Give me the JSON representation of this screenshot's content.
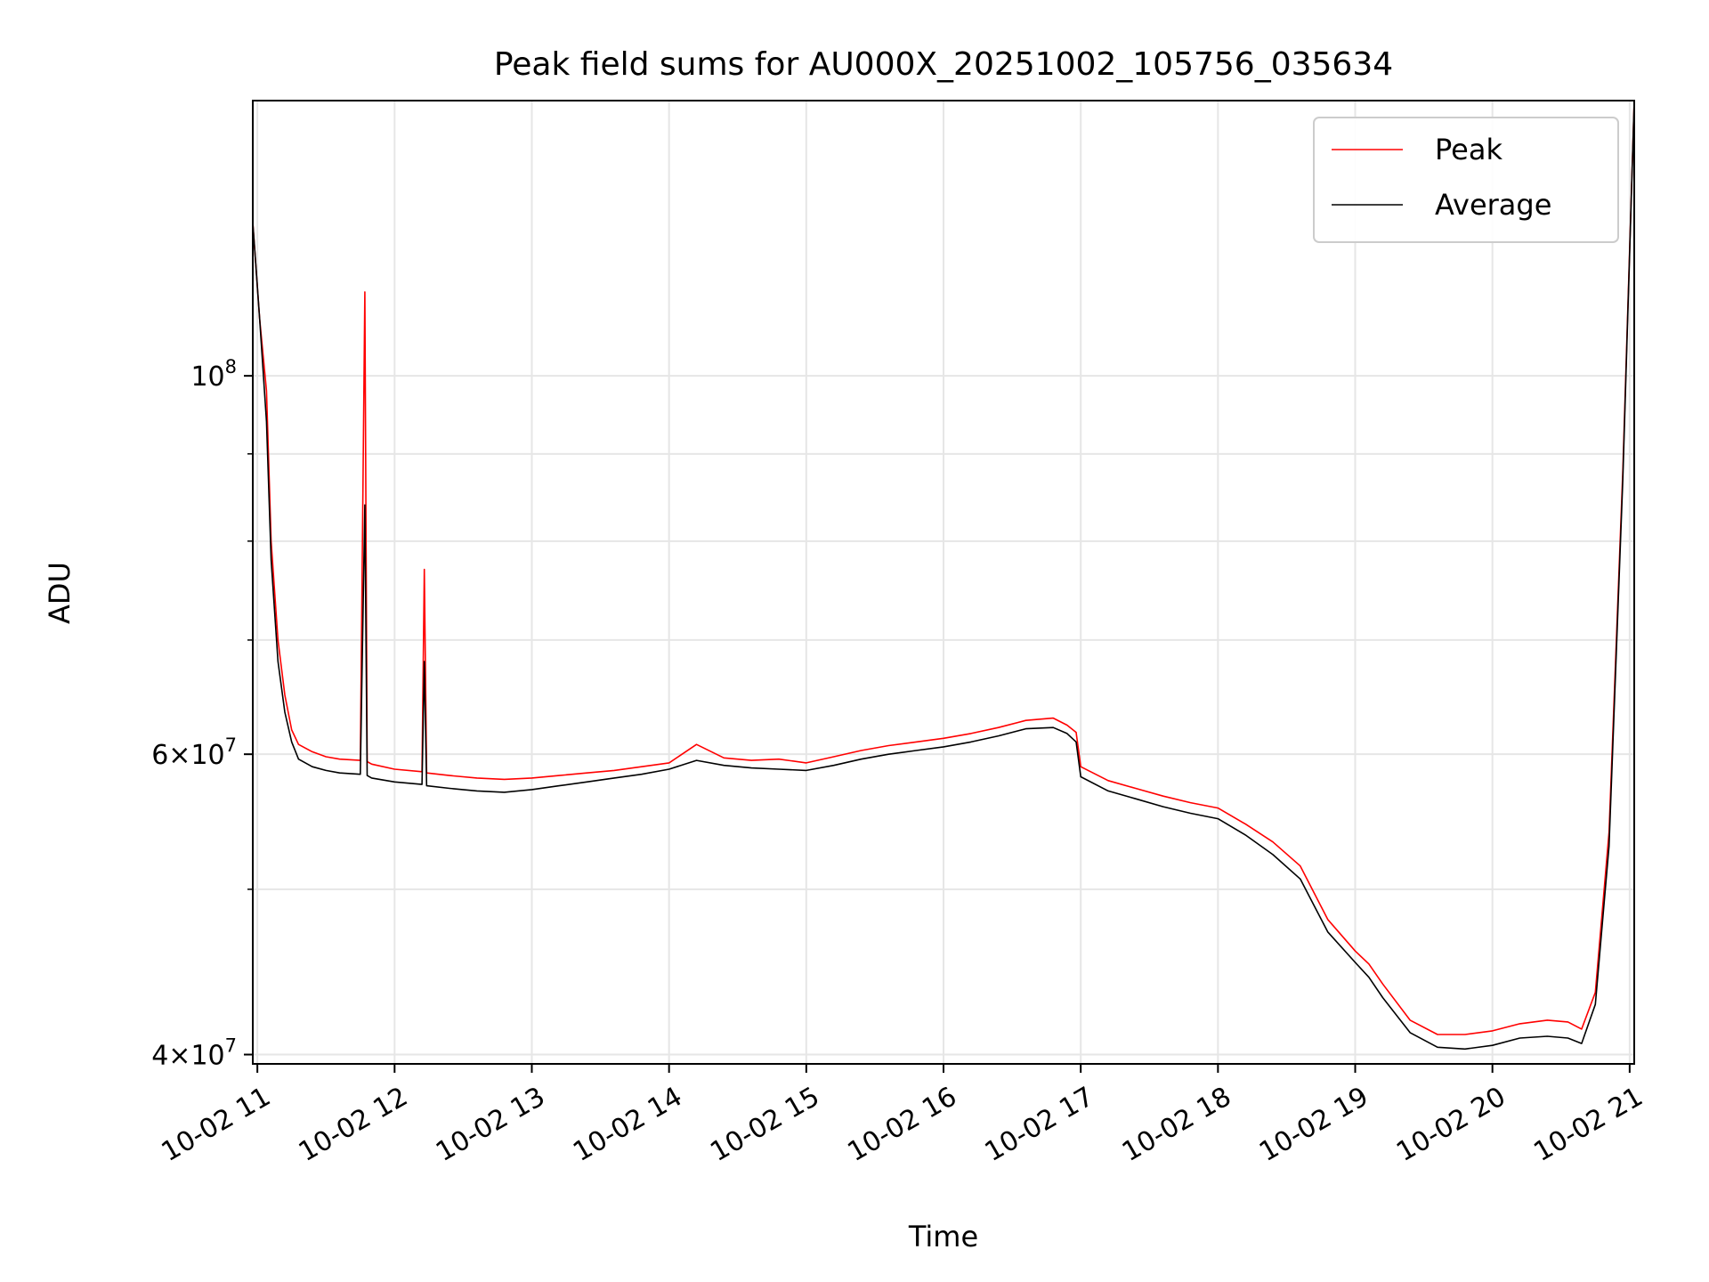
{
  "chart_data": {
    "type": "line",
    "title": "Peak field sums for AU000X_20251002_105756_035634",
    "xlabel": "Time",
    "ylabel": "ADU",
    "yscale": "log",
    "grid": true,
    "legend_position": "top-right",
    "xlim": [
      "2025-10-02 10:58",
      "2025-10-02 21:02"
    ],
    "ylim": [
      39500000,
      145000000
    ],
    "x_ticks": [
      {
        "value": "2025-10-02 11:00",
        "label": "10-02 11"
      },
      {
        "value": "2025-10-02 12:00",
        "label": "10-02 12"
      },
      {
        "value": "2025-10-02 13:00",
        "label": "10-02 13"
      },
      {
        "value": "2025-10-02 14:00",
        "label": "10-02 14"
      },
      {
        "value": "2025-10-02 15:00",
        "label": "10-02 15"
      },
      {
        "value": "2025-10-02 16:00",
        "label": "10-02 16"
      },
      {
        "value": "2025-10-02 17:00",
        "label": "10-02 17"
      },
      {
        "value": "2025-10-02 18:00",
        "label": "10-02 18"
      },
      {
        "value": "2025-10-02 19:00",
        "label": "10-02 19"
      },
      {
        "value": "2025-10-02 20:00",
        "label": "10-02 20"
      },
      {
        "value": "2025-10-02 21:00",
        "label": "10-02 21"
      }
    ],
    "y_major_ticks": [
      {
        "value": 100000000,
        "base": "10",
        "exp": "8",
        "mantissa": ""
      },
      {
        "value": 60000000,
        "base": "10",
        "exp": "7",
        "mantissa": "6"
      },
      {
        "value": 40000000,
        "base": "10",
        "exp": "7",
        "mantissa": "4"
      }
    ],
    "y_minor_ticks": [
      50000000,
      70000000,
      80000000,
      90000000
    ],
    "series": [
      {
        "name": "Peak",
        "color": "#ff0000",
        "x": [
          "2025-10-02 10:58",
          "2025-10-02 11:01",
          "2025-10-02 11:04",
          "2025-10-02 11:06",
          "2025-10-02 11:09",
          "2025-10-02 11:12",
          "2025-10-02 11:15",
          "2025-10-02 11:18",
          "2025-10-02 11:24",
          "2025-10-02 11:30",
          "2025-10-02 11:36",
          "2025-10-02 11:45",
          "2025-10-02 11:47",
          "2025-10-02 11:48",
          "2025-10-02 11:50",
          "2025-10-02 12:00",
          "2025-10-02 12:12",
          "2025-10-02 12:13",
          "2025-10-02 12:14",
          "2025-10-02 12:24",
          "2025-10-02 12:36",
          "2025-10-02 12:48",
          "2025-10-02 13:00",
          "2025-10-02 13:12",
          "2025-10-02 13:24",
          "2025-10-02 13:36",
          "2025-10-02 13:48",
          "2025-10-02 14:00",
          "2025-10-02 14:12",
          "2025-10-02 14:24",
          "2025-10-02 14:36",
          "2025-10-02 14:48",
          "2025-10-02 15:00",
          "2025-10-02 15:12",
          "2025-10-02 15:24",
          "2025-10-02 15:36",
          "2025-10-02 15:48",
          "2025-10-02 16:00",
          "2025-10-02 16:12",
          "2025-10-02 16:24",
          "2025-10-02 16:36",
          "2025-10-02 16:48",
          "2025-10-02 16:54",
          "2025-10-02 16:58",
          "2025-10-02 17:00",
          "2025-10-02 17:12",
          "2025-10-02 17:24",
          "2025-10-02 17:36",
          "2025-10-02 17:48",
          "2025-10-02 18:00",
          "2025-10-02 18:12",
          "2025-10-02 18:24",
          "2025-10-02 18:36",
          "2025-10-02 18:48",
          "2025-10-02 19:00",
          "2025-10-02 19:06",
          "2025-10-02 19:12",
          "2025-10-02 19:24",
          "2025-10-02 19:36",
          "2025-10-02 19:48",
          "2025-10-02 20:00",
          "2025-10-02 20:12",
          "2025-10-02 20:24",
          "2025-10-02 20:33",
          "2025-10-02 20:39",
          "2025-10-02 20:45",
          "2025-10-02 20:51",
          "2025-10-02 20:57",
          "2025-10-02 21:02"
        ],
        "y": [
          123000000,
          108000000,
          98000000,
          80000000,
          70000000,
          65000000,
          62000000,
          60800000,
          60200000,
          59800000,
          59600000,
          59500000,
          112000000,
          59400000,
          59200000,
          58800000,
          58600000,
          77000000,
          58500000,
          58300000,
          58100000,
          58000000,
          58100000,
          58300000,
          58500000,
          58700000,
          59000000,
          59300000,
          60800000,
          59700000,
          59500000,
          59600000,
          59300000,
          59800000,
          60300000,
          60700000,
          61000000,
          61300000,
          61700000,
          62200000,
          62800000,
          63000000,
          62400000,
          61800000,
          59000000,
          57900000,
          57300000,
          56700000,
          56200000,
          55800000,
          54600000,
          53300000,
          51600000,
          48000000,
          46000000,
          45200000,
          44000000,
          41900000,
          41100000,
          41100000,
          41300000,
          41700000,
          41900000,
          41800000,
          41400000,
          43500000,
          54000000,
          88000000,
          145000000
        ]
      },
      {
        "name": "Average",
        "color": "#000000",
        "x": [
          "2025-10-02 10:58",
          "2025-10-02 11:01",
          "2025-10-02 11:04",
          "2025-10-02 11:06",
          "2025-10-02 11:09",
          "2025-10-02 11:12",
          "2025-10-02 11:15",
          "2025-10-02 11:18",
          "2025-10-02 11:24",
          "2025-10-02 11:30",
          "2025-10-02 11:36",
          "2025-10-02 11:45",
          "2025-10-02 11:47",
          "2025-10-02 11:48",
          "2025-10-02 11:50",
          "2025-10-02 12:00",
          "2025-10-02 12:12",
          "2025-10-02 12:13",
          "2025-10-02 12:14",
          "2025-10-02 12:24",
          "2025-10-02 12:36",
          "2025-10-02 12:48",
          "2025-10-02 13:00",
          "2025-10-02 13:12",
          "2025-10-02 13:24",
          "2025-10-02 13:36",
          "2025-10-02 13:48",
          "2025-10-02 14:00",
          "2025-10-02 14:12",
          "2025-10-02 14:24",
          "2025-10-02 14:36",
          "2025-10-02 14:48",
          "2025-10-02 15:00",
          "2025-10-02 15:12",
          "2025-10-02 15:24",
          "2025-10-02 15:36",
          "2025-10-02 15:48",
          "2025-10-02 16:00",
          "2025-10-02 16:12",
          "2025-10-02 16:24",
          "2025-10-02 16:36",
          "2025-10-02 16:48",
          "2025-10-02 16:54",
          "2025-10-02 16:58",
          "2025-10-02 17:00",
          "2025-10-02 17:12",
          "2025-10-02 17:24",
          "2025-10-02 17:36",
          "2025-10-02 17:48",
          "2025-10-02 18:00",
          "2025-10-02 18:12",
          "2025-10-02 18:24",
          "2025-10-02 18:36",
          "2025-10-02 18:48",
          "2025-10-02 19:00",
          "2025-10-02 19:06",
          "2025-10-02 19:12",
          "2025-10-02 19:24",
          "2025-10-02 19:36",
          "2025-10-02 19:48",
          "2025-10-02 20:00",
          "2025-10-02 20:12",
          "2025-10-02 20:24",
          "2025-10-02 20:33",
          "2025-10-02 20:39",
          "2025-10-02 20:45",
          "2025-10-02 20:51",
          "2025-10-02 20:57",
          "2025-10-02 21:02"
        ],
        "y": [
          123000000,
          108000000,
          94000000,
          78000000,
          68000000,
          63500000,
          61000000,
          59600000,
          59000000,
          58700000,
          58500000,
          58400000,
          84000000,
          58300000,
          58100000,
          57800000,
          57600000,
          68000000,
          57500000,
          57300000,
          57100000,
          57000000,
          57200000,
          57500000,
          57800000,
          58100000,
          58400000,
          58800000,
          59500000,
          59100000,
          58900000,
          58800000,
          58700000,
          59100000,
          59600000,
          60000000,
          60300000,
          60600000,
          61000000,
          61500000,
          62100000,
          62200000,
          61700000,
          61000000,
          58200000,
          57100000,
          56500000,
          55900000,
          55400000,
          55000000,
          53800000,
          52400000,
          50700000,
          47200000,
          45300000,
          44400000,
          43200000,
          41200000,
          40400000,
          40300000,
          40500000,
          40900000,
          41000000,
          40900000,
          40600000,
          42800000,
          53000000,
          87000000,
          145000000
        ]
      }
    ]
  }
}
